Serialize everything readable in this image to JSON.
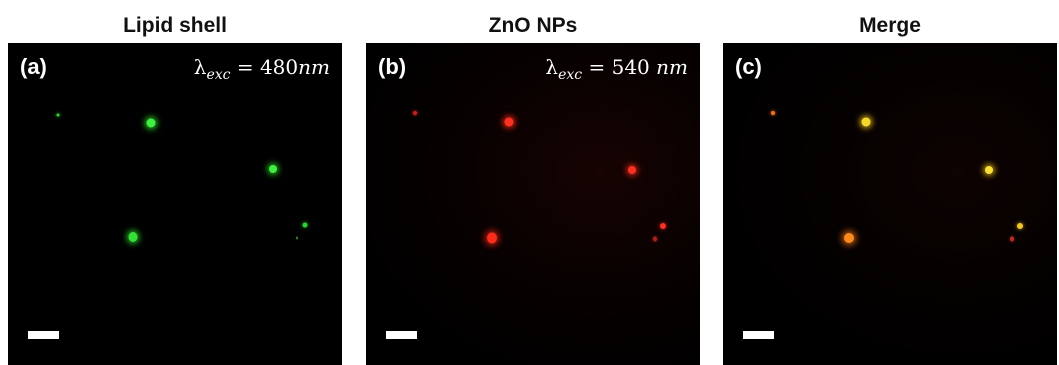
{
  "panels": [
    {
      "title": "Lipid shell",
      "letter": "(a)",
      "excitation": {
        "symbol": "λ",
        "subscript": "exc",
        "equals": " = ",
        "value": "480",
        "unit": "nm"
      }
    },
    {
      "title": "ZnO NPs",
      "letter": "(b)",
      "excitation": {
        "symbol": "λ",
        "subscript": "exc",
        "equals": " = ",
        "value": "540 ",
        "unit": "nm"
      }
    },
    {
      "title": "Merge",
      "letter": "(c)"
    }
  ],
  "colors": {
    "green_channel": "#2bd62b",
    "red_channel": "#ff2a1a",
    "merge_yellow": "#f2c81f",
    "merge_orange": "#ff7a18",
    "background": "#000000"
  }
}
